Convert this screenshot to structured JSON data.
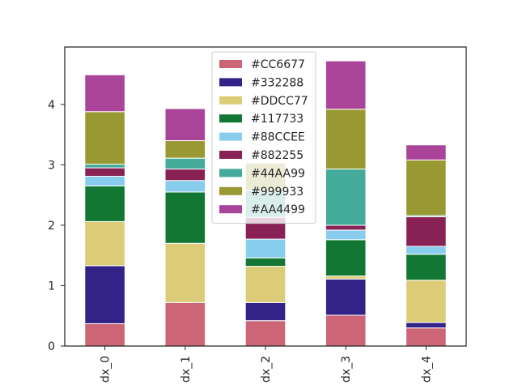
{
  "chart_data": {
    "type": "bar",
    "stacked": true,
    "categories": [
      "dx_0",
      "dx_1",
      "dx_2",
      "dx_3",
      "dx_4"
    ],
    "series": [
      {
        "name": "#CC6677",
        "color": "#CC6677",
        "values": [
          0.37,
          0.72,
          0.42,
          0.51,
          0.3
        ]
      },
      {
        "name": "#332288",
        "color": "#332288",
        "values": [
          0.96,
          0.0,
          0.3,
          0.6,
          0.09
        ]
      },
      {
        "name": "#DDCC77",
        "color": "#DDCC77",
        "values": [
          0.73,
          0.98,
          0.6,
          0.05,
          0.7
        ]
      },
      {
        "name": "#117733",
        "color": "#117733",
        "values": [
          0.59,
          0.85,
          0.14,
          0.6,
          0.43
        ]
      },
      {
        "name": "#88CCEE",
        "color": "#88CCEE",
        "values": [
          0.16,
          0.19,
          0.31,
          0.16,
          0.13
        ]
      },
      {
        "name": "#882255",
        "color": "#882255",
        "values": [
          0.14,
          0.19,
          0.36,
          0.08,
          0.49
        ]
      },
      {
        "name": "#44AA99",
        "color": "#44AA99",
        "values": [
          0.06,
          0.18,
          0.45,
          0.93,
          0.02
        ]
      },
      {
        "name": "#999933",
        "color": "#999933",
        "values": [
          0.87,
          0.29,
          0.45,
          0.99,
          0.92
        ]
      },
      {
        "name": "#AA4499",
        "color": "#AA4499",
        "values": [
          0.61,
          0.53,
          0.0,
          0.8,
          0.25
        ]
      }
    ],
    "ylim": [
      0,
      4.95
    ],
    "yticks": [
      0,
      1,
      2,
      3,
      4
    ],
    "xlabel": "",
    "ylabel": "",
    "title": "",
    "grid": false,
    "legend_position": "top-center"
  }
}
